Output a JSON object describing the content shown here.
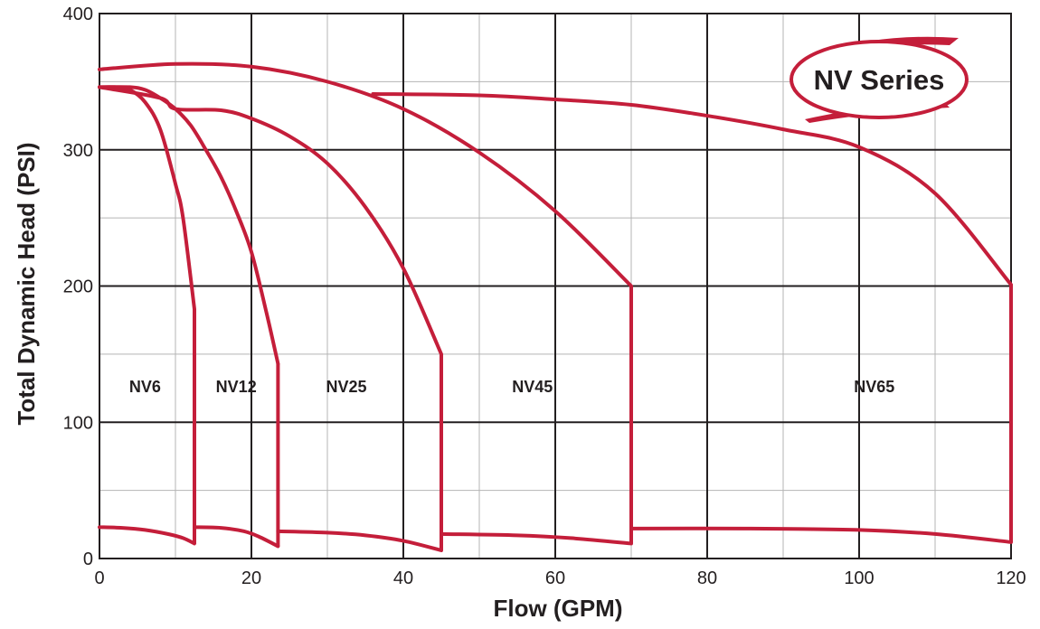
{
  "chart_data": {
    "type": "line",
    "title": "",
    "badge": "NV Series",
    "xlabel": "Flow (GPM)",
    "ylabel": "Total Dynamic Head (PSI)",
    "xlim": [
      0,
      120
    ],
    "ylim": [
      0,
      400
    ],
    "x_ticks": [
      0,
      20,
      40,
      60,
      80,
      100,
      120
    ],
    "y_ticks": [
      0,
      100,
      200,
      300,
      400
    ],
    "x_minor_step": 10,
    "y_minor_step": 50,
    "grid": true,
    "line_color": "#c41e3a",
    "series": [
      {
        "name": "NV6",
        "upper": [
          [
            0,
            346
          ],
          [
            2,
            346
          ],
          [
            4,
            344
          ],
          [
            6,
            335
          ],
          [
            8,
            315
          ],
          [
            10,
            275
          ],
          [
            11,
            250
          ],
          [
            12.5,
            183
          ]
        ],
        "lower": [
          [
            0,
            23
          ],
          [
            3,
            22.5
          ],
          [
            6,
            21
          ],
          [
            9,
            18
          ],
          [
            11,
            15
          ],
          [
            12.5,
            11
          ]
        ]
      },
      {
        "name": "NV12",
        "upper": [
          [
            0,
            346
          ],
          [
            4,
            346
          ],
          [
            6,
            344
          ],
          [
            8,
            338
          ],
          [
            10,
            330
          ],
          [
            12,
            318
          ],
          [
            14,
            300
          ],
          [
            16,
            280
          ],
          [
            18,
            255
          ],
          [
            20,
            225
          ],
          [
            22,
            180
          ],
          [
            23.5,
            143
          ]
        ],
        "lower": [
          [
            12.5,
            23
          ],
          [
            16,
            22.5
          ],
          [
            19,
            20
          ],
          [
            21,
            16
          ],
          [
            23.5,
            9
          ]
        ]
      },
      {
        "name": "NV25",
        "upper": [
          [
            0,
            346
          ],
          [
            8,
            338
          ],
          [
            10,
            330
          ],
          [
            16,
            329
          ],
          [
            20,
            323
          ],
          [
            25,
            310
          ],
          [
            30,
            290
          ],
          [
            35,
            258
          ],
          [
            40,
            213
          ],
          [
            45,
            150
          ]
        ],
        "lower": [
          [
            23.5,
            20
          ],
          [
            30,
            19
          ],
          [
            35,
            17
          ],
          [
            40,
            13
          ],
          [
            45,
            6
          ]
        ]
      },
      {
        "name": "NV45",
        "upper": [
          [
            0,
            359
          ],
          [
            10,
            363
          ],
          [
            20,
            361
          ],
          [
            30,
            350
          ],
          [
            40,
            330
          ],
          [
            50,
            298
          ],
          [
            60,
            255
          ],
          [
            70,
            200
          ]
        ],
        "lower": [
          [
            45,
            18
          ],
          [
            55,
            17
          ],
          [
            62,
            15
          ],
          [
            70,
            11
          ]
        ]
      },
      {
        "name": "NV65",
        "upper": [
          [
            36,
            341
          ],
          [
            50,
            340
          ],
          [
            60,
            337
          ],
          [
            70,
            333
          ],
          [
            80,
            325
          ],
          [
            90,
            315
          ],
          [
            100,
            302
          ],
          [
            110,
            268
          ],
          [
            120,
            201
          ]
        ],
        "lower": [
          [
            70,
            22
          ],
          [
            85,
            22
          ],
          [
            100,
            21
          ],
          [
            110,
            18
          ],
          [
            120,
            12
          ]
        ]
      }
    ],
    "labels": [
      {
        "text": "NV6",
        "x": 6,
        "y": 122
      },
      {
        "text": "NV12",
        "x": 18,
        "y": 122
      },
      {
        "text": "NV25",
        "x": 32.5,
        "y": 122
      },
      {
        "text": "NV45",
        "x": 57,
        "y": 122
      },
      {
        "text": "NV65",
        "x": 102,
        "y": 122
      }
    ]
  }
}
